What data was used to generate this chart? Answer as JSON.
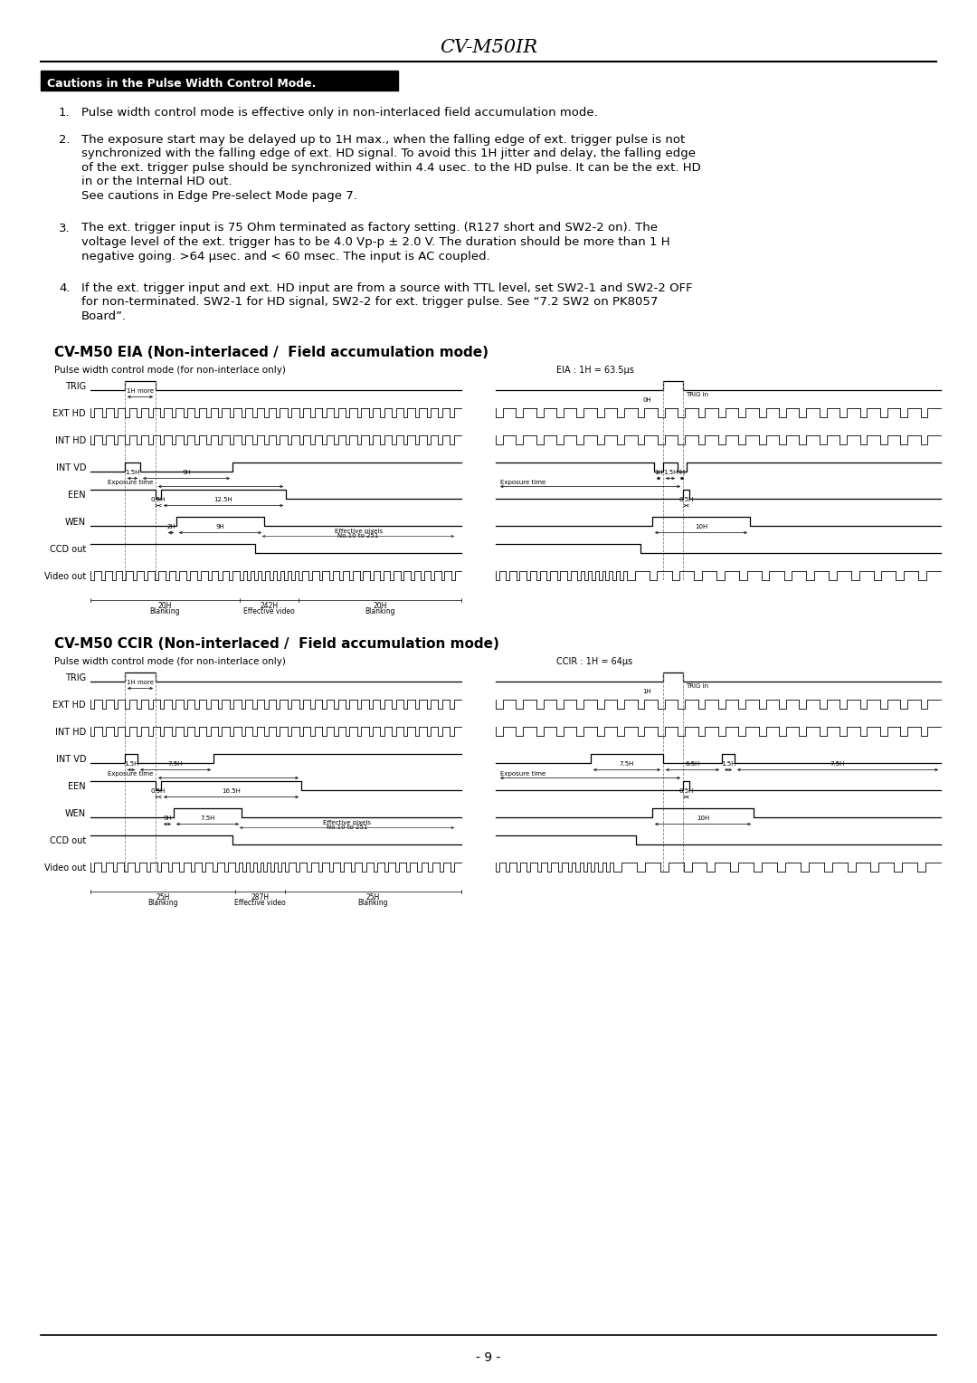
{
  "title": "CV-M50IR",
  "page_number": "- 9 -",
  "section_header": "Cautions in the Pulse Width Control Mode.",
  "item1": "Pulse width control mode is effective only in non-interlaced field accumulation mode.",
  "item2_lines": [
    "The exposure start may be delayed up to 1H max., when the falling edge of ext. trigger pulse is not",
    "synchronized with the falling edge of ext. HD signal. To avoid this 1H jitter and delay, the falling edge",
    "of the ext. trigger pulse should be synchronized within 4.4 usec. to the HD pulse. It can be the ext. HD",
    "in or the Internal HD out.",
    "See cautions in Edge Pre-select Mode page 7."
  ],
  "item3_lines": [
    "The ext. trigger input is 75 Ohm terminated as factory setting. (R127 short and SW2-2 on). The",
    "voltage level of the ext. trigger has to be 4.0 Vp-p ± 2.0 V. The duration should be more than 1 H",
    "negative going. >64 μsec. and < 60 msec. The input is AC coupled."
  ],
  "item4_lines": [
    "If the ext. trigger input and ext. HD input are from a source with TTL level, set SW2-1 and SW2-2 OFF",
    "for non-terminated. SW2-1 for HD signal, SW2-2 for ext. trigger pulse. See “7.2 SW2 on PK8057",
    "Board”."
  ],
  "diagram1_title": "CV-M50 EIA (Non-interlaced /  Field accumulation mode)",
  "diagram1_subtitle": "Pulse width control mode (for non-interlace only)",
  "diagram1_note": "EIA : 1H = 63.5μs",
  "diagram2_title": "CV-M50 CCIR (Non-interlaced /  Field accumulation mode)",
  "diagram2_subtitle": "Pulse width control mode (for non-interlace only)",
  "diagram2_note": "CCIR : 1H = 64μs",
  "bg_color": "#ffffff"
}
